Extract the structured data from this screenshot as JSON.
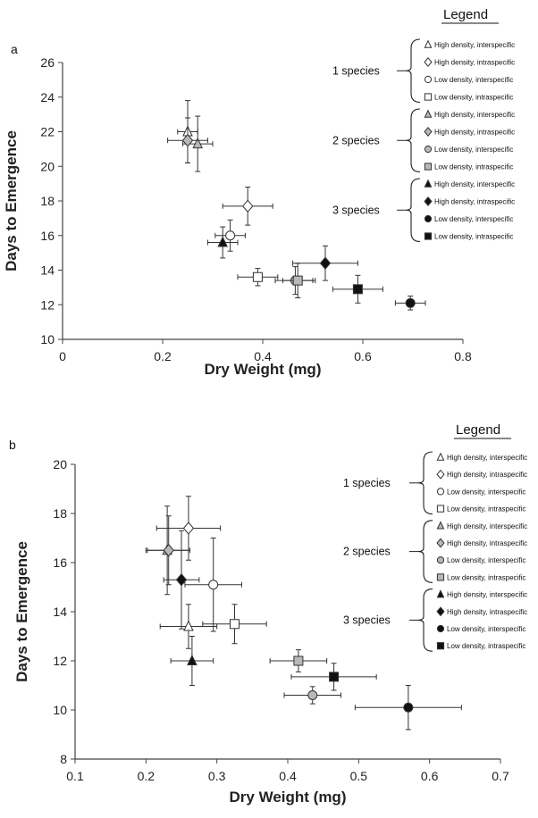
{
  "chart_data": [
    {
      "type": "scatter",
      "panel_label": "a",
      "title": "",
      "xlabel": "Dry Weight (mg)",
      "ylabel": "Days to Emergence",
      "xlim": [
        0,
        0.8
      ],
      "ylim": [
        10,
        26
      ],
      "xticks": [
        "0",
        "0.2",
        "0.4",
        "0.6",
        "0.8"
      ],
      "yticks": [
        "10",
        "12",
        "14",
        "16",
        "18",
        "20",
        "22",
        "24",
        "26"
      ],
      "grid": false,
      "legend_placement": "right",
      "points": [
        {
          "species": "1 species",
          "group": "High density, interspecific",
          "x": 0.25,
          "y": 22.0,
          "xerr": 0.02,
          "yerr": 1.8
        },
        {
          "species": "1 species",
          "group": "High density, intraspecific",
          "x": 0.37,
          "y": 17.7,
          "xerr": 0.05,
          "yerr": 1.1
        },
        {
          "species": "1 species",
          "group": "Low density, interspecific",
          "x": 0.335,
          "y": 16.0,
          "xerr": 0.03,
          "yerr": 0.9
        },
        {
          "species": "1 species",
          "group": "Low density, intraspecific",
          "x": 0.39,
          "y": 13.6,
          "xerr": 0.04,
          "yerr": 0.5
        },
        {
          "species": "2 species",
          "group": "High density, interspecific",
          "x": 0.27,
          "y": 21.3,
          "xerr": 0.03,
          "yerr": 1.6
        },
        {
          "species": "2 species",
          "group": "High density, intraspecific",
          "x": 0.25,
          "y": 21.5,
          "xerr": 0.04,
          "yerr": 1.3
        },
        {
          "species": "2 species",
          "group": "Low density, interspecific",
          "x": 0.465,
          "y": 13.4,
          "xerr": 0.04,
          "yerr": 0.8
        },
        {
          "species": "2 species",
          "group": "Low density, intraspecific",
          "x": 0.47,
          "y": 13.4,
          "xerr": 0.03,
          "yerr": 1.0
        },
        {
          "species": "3 species",
          "group": "High density, interspecific",
          "x": 0.32,
          "y": 15.6,
          "xerr": 0.03,
          "yerr": 0.9
        },
        {
          "species": "3 species",
          "group": "High density, intraspecific",
          "x": 0.525,
          "y": 14.4,
          "xerr": 0.065,
          "yerr": 1.0
        },
        {
          "species": "3 species",
          "group": "Low density, interspecific",
          "x": 0.695,
          "y": 12.1,
          "xerr": 0.03,
          "yerr": 0.4
        },
        {
          "species": "3 species",
          "group": "Low density, intraspecific",
          "x": 0.59,
          "y": 12.9,
          "xerr": 0.05,
          "yerr": 0.8
        }
      ]
    },
    {
      "type": "scatter",
      "panel_label": "b",
      "title": "",
      "xlabel": "Dry Weight (mg)",
      "ylabel": "Days to Emergence",
      "xlim": [
        0.1,
        0.7
      ],
      "ylim": [
        8,
        20
      ],
      "xticks": [
        "0.1",
        "0.2",
        "0.3",
        "0.4",
        "0.5",
        "0.6",
        "0.7"
      ],
      "yticks": [
        "8",
        "10",
        "12",
        "14",
        "16",
        "18",
        "20"
      ],
      "grid": false,
      "legend_placement": "right",
      "points": [
        {
          "species": "1 species",
          "group": "High density, interspecific",
          "x": 0.26,
          "y": 13.4,
          "xerr": 0.04,
          "yerr": 0.9
        },
        {
          "species": "1 species",
          "group": "High density, intraspecific",
          "x": 0.26,
          "y": 17.4,
          "xerr": 0.045,
          "yerr": 1.3
        },
        {
          "species": "1 species",
          "group": "Low density, interspecific",
          "x": 0.295,
          "y": 15.1,
          "xerr": 0.04,
          "yerr": 1.9
        },
        {
          "species": "1 species",
          "group": "Low density, intraspecific",
          "x": 0.325,
          "y": 13.5,
          "xerr": 0.045,
          "yerr": 0.8
        },
        {
          "species": "2 species",
          "group": "High density, interspecific",
          "x": 0.23,
          "y": 16.5,
          "xerr": 0.03,
          "yerr": 1.8
        },
        {
          "species": "2 species",
          "group": "High density, intraspecific",
          "x": 0.232,
          "y": 16.5,
          "xerr": 0.03,
          "yerr": 1.4
        },
        {
          "species": "2 species",
          "group": "Low density, interspecific",
          "x": 0.435,
          "y": 10.6,
          "xerr": 0.04,
          "yerr": 0.35
        },
        {
          "species": "2 species",
          "group": "Low density, intraspecific",
          "x": 0.415,
          "y": 12.0,
          "xerr": 0.04,
          "yerr": 0.45
        },
        {
          "species": "3 species",
          "group": "High density, interspecific",
          "x": 0.265,
          "y": 12.0,
          "xerr": 0.03,
          "yerr": 1.0
        },
        {
          "species": "3 species",
          "group": "High density, intraspecific",
          "x": 0.25,
          "y": 15.3,
          "xerr": 0.025,
          "yerr": 2.0
        },
        {
          "species": "3 species",
          "group": "Low density, interspecific",
          "x": 0.57,
          "y": 10.1,
          "xerr": 0.075,
          "yerr": 0.9
        },
        {
          "species": "3 species",
          "group": "Low density, intraspecific",
          "x": 0.465,
          "y": 11.35,
          "xerr": 0.06,
          "yerr": 0.55
        }
      ]
    }
  ],
  "legend": {
    "title": "Legend",
    "groups": [
      {
        "label": "1 species",
        "items": [
          {
            "text": "High density, interspecific",
            "shape": "triangle",
            "fill": "#ffffff"
          },
          {
            "text": "High density, intraspecific",
            "shape": "diamond",
            "fill": "#ffffff"
          },
          {
            "text": "Low density, interspecific",
            "shape": "circle",
            "fill": "#ffffff"
          },
          {
            "text": "Low density, intraspecific",
            "shape": "square",
            "fill": "#ffffff"
          }
        ]
      },
      {
        "label": "2 species",
        "items": [
          {
            "text": "High density, interspecific",
            "shape": "triangle",
            "fill": "#b8b8b8"
          },
          {
            "text": "High density, intraspecific",
            "shape": "diamond",
            "fill": "#b8b8b8"
          },
          {
            "text": "Low density, interspecific",
            "shape": "circle",
            "fill": "#b8b8b8"
          },
          {
            "text": "Low density, intraspecific",
            "shape": "square",
            "fill": "#b8b8b8"
          }
        ]
      },
      {
        "label": "3 species",
        "items": [
          {
            "text": "High density, interspecific",
            "shape": "triangle",
            "fill": "#111111"
          },
          {
            "text": "High density, intraspecific",
            "shape": "diamond",
            "fill": "#111111"
          },
          {
            "text": "Low density, interspecific",
            "shape": "circle",
            "fill": "#111111"
          },
          {
            "text": "Low density, intraspecific",
            "shape": "square",
            "fill": "#111111"
          }
        ]
      }
    ]
  },
  "colors": {
    "one_species": "#ffffff",
    "two_species": "#b8b8b8",
    "three_species": "#111111",
    "stroke": "#333333"
  }
}
